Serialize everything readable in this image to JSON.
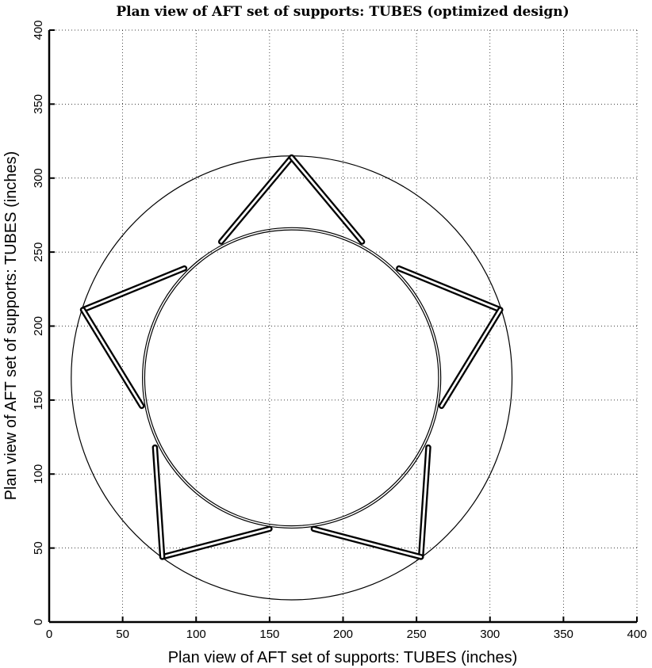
{
  "chart_data": {
    "type": "diagram-plot",
    "title": "Plan view of AFT set of supports: TUBES (optimized design)",
    "xlabel": "Plan view of AFT set of supports: TUBES (inches)",
    "ylabel": "Plan view of AFT set of supports: TUBES (inches)",
    "xlim": [
      0,
      400
    ],
    "ylim": [
      0,
      400
    ],
    "xticks": [
      0,
      50,
      100,
      150,
      200,
      250,
      300,
      350,
      400
    ],
    "yticks": [
      0,
      50,
      100,
      150,
      200,
      250,
      300,
      350,
      400
    ],
    "grid": true,
    "circles": [
      {
        "name": "outer-ring",
        "cx": 165,
        "cy": 165,
        "r": 150
      },
      {
        "name": "inner-ring-a",
        "cx": 165,
        "cy": 165,
        "r": 100
      },
      {
        "name": "inner-ring-b",
        "cx": 165,
        "cy": 165,
        "r": 101.5
      }
    ],
    "tubes": [
      {
        "x1": 165,
        "y1": 314,
        "x2": 117,
        "y2": 257
      },
      {
        "x1": 165,
        "y1": 314,
        "x2": 213,
        "y2": 257
      },
      {
        "x1": 307,
        "y1": 211,
        "x2": 238,
        "y2": 239
      },
      {
        "x1": 307,
        "y1": 211,
        "x2": 267,
        "y2": 146
      },
      {
        "x1": 253,
        "y1": 44,
        "x2": 258,
        "y2": 118
      },
      {
        "x1": 253,
        "y1": 44,
        "x2": 180,
        "y2": 63
      },
      {
        "x1": 77,
        "y1": 44,
        "x2": 150,
        "y2": 63
      },
      {
        "x1": 77,
        "y1": 44,
        "x2": 72,
        "y2": 118
      },
      {
        "x1": 23,
        "y1": 211,
        "x2": 92,
        "y2": 239
      },
      {
        "x1": 23,
        "y1": 211,
        "x2": 63,
        "y2": 146
      }
    ]
  }
}
